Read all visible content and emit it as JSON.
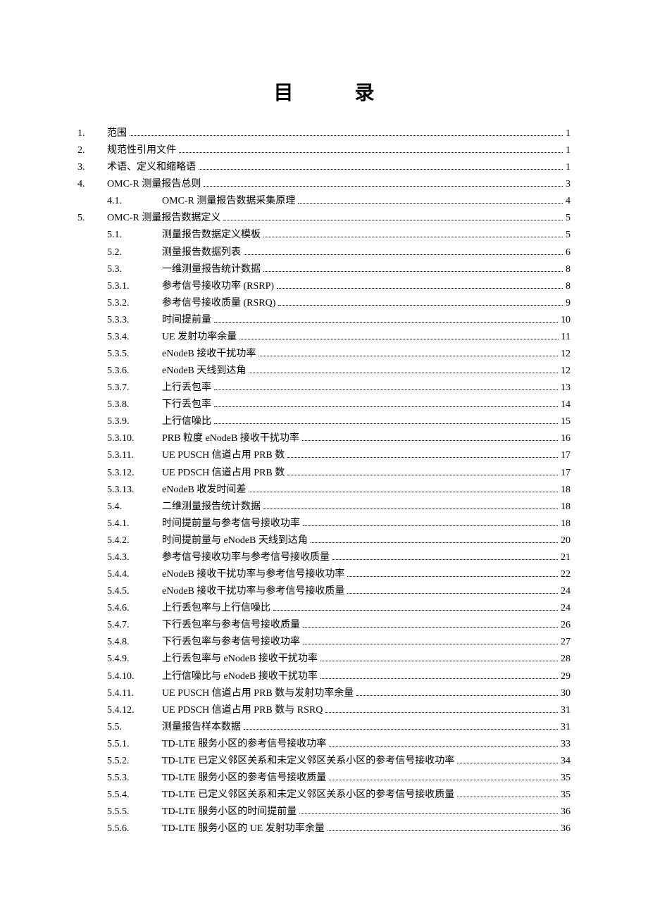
{
  "title": "目 录",
  "font": {
    "title_size_pt": 21,
    "body_size_pt": 10.5,
    "color": "#000000"
  },
  "page_bg": "#ffffff",
  "dot_leader_color": "#000000",
  "toc": [
    {
      "level": 1,
      "num": "1.",
      "text": "范围",
      "page": "1"
    },
    {
      "level": 1,
      "num": "2.",
      "text": "规范性引用文件",
      "page": "1"
    },
    {
      "level": 1,
      "num": "3.",
      "text": "术语、定义和缩略语",
      "page": "1"
    },
    {
      "level": 1,
      "num": "4.",
      "text": "OMC-R 测量报告总则 ",
      "page": "3"
    },
    {
      "level": 2,
      "num": "4.1.",
      "text": "OMC-R 测量报告数据采集原理 ",
      "page": "4"
    },
    {
      "level": 1,
      "num": "5.",
      "text": "OMC-R 测量报告数据定义 ",
      "page": "5"
    },
    {
      "level": 2,
      "num": "5.1.",
      "text": "测量报告数据定义模板",
      "page": "5"
    },
    {
      "level": 2,
      "num": "5.2.",
      "text": "测量报告数据列表",
      "page": "6"
    },
    {
      "level": 2,
      "num": "5.3.",
      "text": "一维测量报告统计数据",
      "page": "8"
    },
    {
      "level": 2,
      "num": "5.3.1.",
      "text": "参考信号接收功率 (RSRP)",
      "page": "8"
    },
    {
      "level": 2,
      "num": "5.3.2.",
      "text": "参考信号接收质量 (RSRQ) ",
      "page": "9"
    },
    {
      "level": 2,
      "num": "5.3.3.",
      "text": "时间提前量",
      "page": "10"
    },
    {
      "level": 2,
      "num": "5.3.4.",
      "text": "UE 发射功率余量 ",
      "page": "11"
    },
    {
      "level": 2,
      "num": "5.3.5.",
      "text": "eNodeB 接收干扰功率 ",
      "page": "12"
    },
    {
      "level": 2,
      "num": "5.3.6.",
      "text": "eNodeB 天线到达角 ",
      "page": "12"
    },
    {
      "level": 2,
      "num": "5.3.7.",
      "text": "上行丢包率",
      "page": "13"
    },
    {
      "level": 2,
      "num": "5.3.8.",
      "text": "下行丢包率",
      "page": "14"
    },
    {
      "level": 2,
      "num": "5.3.9.",
      "text": "上行信噪比",
      "page": "15"
    },
    {
      "level": 2,
      "num": "5.3.10.",
      "text": "PRB 粒度 eNodeB 接收干扰功率",
      "page": "16"
    },
    {
      "level": 2,
      "num": "5.3.11.",
      "text": "UE PUSCH 信道占用 PRB 数",
      "page": "17"
    },
    {
      "level": 2,
      "num": "5.3.12.",
      "text": "UE PDSCH 信道占用 PRB 数",
      "page": "17"
    },
    {
      "level": 2,
      "num": "5.3.13.",
      "text": "eNodeB 收发时间差 ",
      "page": "18"
    },
    {
      "level": 2,
      "num": "5.4.",
      "text": "二维测量报告统计数据",
      "page": "18"
    },
    {
      "level": 2,
      "num": "5.4.1.",
      "text": "时间提前量与参考信号接收功率",
      "page": "18"
    },
    {
      "level": 2,
      "num": "5.4.2.",
      "text": "时间提前量与 eNodeB 天线到达角 ",
      "page": "20"
    },
    {
      "level": 2,
      "num": "5.4.3.",
      "text": "参考信号接收功率与参考信号接收质量",
      "page": "21"
    },
    {
      "level": 2,
      "num": "5.4.4.",
      "text": "eNodeB 接收干扰功率与参考信号接收功率 ",
      "page": "22"
    },
    {
      "level": 2,
      "num": "5.4.5.",
      "text": "eNodeB 接收干扰功率与参考信号接收质量 ",
      "page": "24"
    },
    {
      "level": 2,
      "num": "5.4.6.",
      "text": "上行丢包率与上行信噪比",
      "page": "24"
    },
    {
      "level": 2,
      "num": "5.4.7.",
      "text": "下行丢包率与参考信号接收质量",
      "page": "26"
    },
    {
      "level": 2,
      "num": "5.4.8.",
      "text": "下行丢包率与参考信号接收功率",
      "page": "27"
    },
    {
      "level": 2,
      "num": "5.4.9.",
      "text": "上行丢包率与 eNodeB 接收干扰功率 ",
      "page": "28"
    },
    {
      "level": 2,
      "num": "5.4.10.",
      "text": "上行信噪比与 eNodeB 接收干扰功率 ",
      "page": "29"
    },
    {
      "level": 2,
      "num": "5.4.11.",
      "text": "UE PUSCH 信道占用 PRB 数与发射功率余量",
      "page": "30"
    },
    {
      "level": 2,
      "num": "5.4.12.",
      "text": "UE PDSCH 信道占用 PRB 数与 RSRQ ",
      "page": "31"
    },
    {
      "level": 2,
      "num": "5.5.",
      "text": "测量报告样本数据",
      "page": "31"
    },
    {
      "level": 2,
      "num": "5.5.1.",
      "text": "TD-LTE 服务小区的参考信号接收功率",
      "page": "33"
    },
    {
      "level": 2,
      "num": "5.5.2.",
      "text": "TD-LTE 已定义邻区关系和未定义邻区关系小区的参考信号接收功率",
      "page": "34"
    },
    {
      "level": 2,
      "num": "5.5.3.",
      "text": "TD-LTE 服务小区的参考信号接收质量",
      "page": "35"
    },
    {
      "level": 2,
      "num": "5.5.4.",
      "text": "TD-LTE 已定义邻区关系和未定义邻区关系小区的参考信号接收质量",
      "page": "35"
    },
    {
      "level": 2,
      "num": "5.5.5.",
      "text": "TD-LTE 服务小区的时间提前量",
      "page": "36"
    },
    {
      "level": 2,
      "num": "5.5.6.",
      "text": "TD-LTE 服务小区的 UE 发射功率余量 ",
      "page": "36"
    }
  ]
}
